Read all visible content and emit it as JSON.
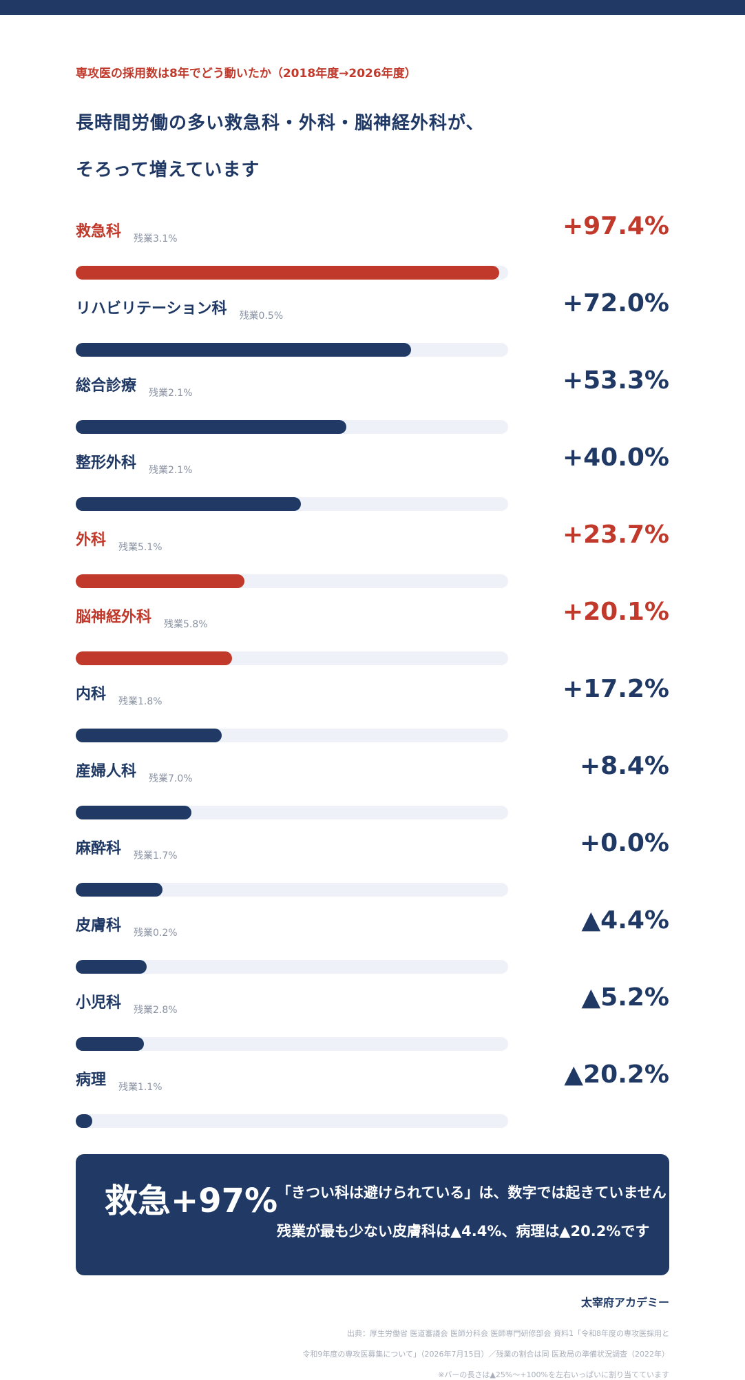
{
  "header": {
    "kicker": "専攻医の採用数は8年でどう動いたか（2018年度→2026年度）",
    "headline_line1": "長時間労働の多い救急科・外科・脳神経外科が、",
    "headline_line2": "そろって増えています"
  },
  "colors": {
    "accent": "#c0392b",
    "navy": "#213a65",
    "track": "#eef1f7"
  },
  "chart_data": {
    "type": "bar",
    "orientation": "horizontal",
    "title": "",
    "categories": [
      "救急科",
      "リハビリテーション科",
      "総合診療",
      "整形外科",
      "外科",
      "脳神経外科",
      "内科",
      "産婦人科",
      "麻酔科",
      "皮膚科",
      "小児科",
      "病理"
    ],
    "values": [
      97.4,
      72.0,
      53.3,
      40.0,
      23.7,
      20.1,
      17.2,
      8.4,
      0.0,
      -4.4,
      -5.2,
      -20.2
    ],
    "value_labels": [
      "+97.4%",
      "+72.0%",
      "+53.3%",
      "+40.0%",
      "+23.7%",
      "+20.1%",
      "+17.2%",
      "+8.4%",
      "+0.0%",
      "▲4.4%",
      "▲5.2%",
      "▲20.2%"
    ],
    "overtime_labels": [
      "残業3.1%",
      "残業0.5%",
      "残業2.1%",
      "残業2.1%",
      "残業5.1%",
      "残業5.8%",
      "残業1.8%",
      "残業7.0%",
      "残業1.7%",
      "残業0.2%",
      "残業2.8%",
      "残業1.1%"
    ],
    "highlighted": [
      true,
      false,
      false,
      false,
      true,
      true,
      false,
      false,
      false,
      false,
      false,
      false
    ],
    "bar_range": [
      -25,
      100
    ],
    "grid": false,
    "legend": "none"
  },
  "callout": {
    "big": "救急+97%",
    "line1": "「きつい科は避けられている」は、数字では起きていません",
    "line2": "残業が最も少ない皮膚科は▲4.4%、病理は▲20.2%です"
  },
  "footer": {
    "brand": "太宰府アカデミー",
    "source1": "出典：厚生労働省 医道審議会 医師分科会 医師専門研修部会 資料1「令和8年度の専攻医採用と",
    "source2": "令和9年度の専攻医募集について」（2026年7月15日）／残業の割合は同 医政局の準備状況調査（2022年）",
    "source3": "※バーの長さは▲25%〜+100%を左右いっぱいに割り当てています"
  }
}
